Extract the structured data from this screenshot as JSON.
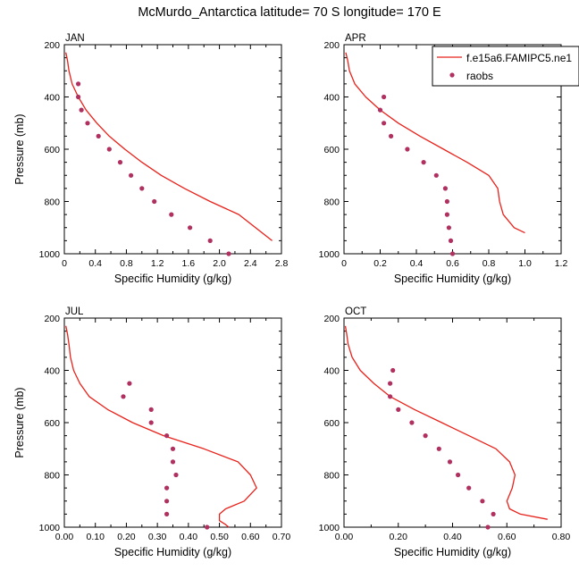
{
  "title": "McMurdo_Antarctica  latitude= 70 S longitude= 170 E",
  "colors": {
    "model_line": "#e8211a",
    "raobs_marker": "#b03060"
  },
  "legend": {
    "model": "f.e15a6.FAMIPC5.ne1",
    "obs": "raobs"
  },
  "chart_data": [
    {
      "type": "line",
      "panel_title": "JAN",
      "xlabel": "Specific Humidity (g/kg)",
      "ylabel": "Pressure (mb)",
      "xlim": [
        0,
        2.8
      ],
      "ylim": [
        200,
        1000
      ],
      "xticks": [
        "0",
        "0.4",
        "0.8",
        "1.2",
        "1.6",
        "2.0",
        "2.4",
        "2.8"
      ],
      "yticks": [
        "200",
        "400",
        "600",
        "800",
        "1000"
      ],
      "y_inverted": true,
      "series": [
        {
          "name": "f.e15a6.FAMIPC5.ne1",
          "style": "line",
          "x": [
            0.02,
            0.04,
            0.06,
            0.1,
            0.18,
            0.28,
            0.42,
            0.58,
            0.78,
            1.0,
            1.25,
            1.55,
            1.88,
            2.25,
            2.68
          ],
          "y": [
            230,
            260,
            300,
            350,
            400,
            450,
            500,
            550,
            600,
            650,
            700,
            750,
            800,
            850,
            950
          ]
        },
        {
          "name": "raobs",
          "style": "marker",
          "x": [
            0.18,
            0.18,
            0.22,
            0.3,
            0.44,
            0.58,
            0.72,
            0.86,
            1.0,
            1.16,
            1.38,
            1.62,
            1.88,
            2.12
          ],
          "y": [
            350,
            400,
            450,
            500,
            550,
            600,
            650,
            700,
            750,
            800,
            850,
            900,
            950,
            1000
          ]
        }
      ]
    },
    {
      "type": "line",
      "panel_title": "APR",
      "xlabel": "Specific Humidity (g/kg)",
      "ylabel": "",
      "xlim": [
        0,
        1.2
      ],
      "ylim": [
        200,
        1000
      ],
      "xticks": [
        "0",
        "0.2",
        "0.4",
        "0.6",
        "0.8",
        "1.0",
        "1.2"
      ],
      "yticks": [
        "200",
        "400",
        "600",
        "800",
        "1000"
      ],
      "y_inverted": true,
      "series": [
        {
          "name": "f.e15a6.FAMIPC5.ne1",
          "style": "line",
          "x": [
            0.01,
            0.02,
            0.03,
            0.06,
            0.12,
            0.2,
            0.3,
            0.42,
            0.55,
            0.68,
            0.8,
            0.85,
            0.86,
            0.88,
            0.94,
            1.0
          ],
          "y": [
            230,
            260,
            300,
            350,
            400,
            450,
            500,
            550,
            600,
            650,
            700,
            750,
            800,
            850,
            900,
            920
          ]
        },
        {
          "name": "raobs",
          "style": "marker",
          "x": [
            0.22,
            0.2,
            0.22,
            0.26,
            0.35,
            0.44,
            0.51,
            0.56,
            0.57,
            0.57,
            0.58,
            0.59,
            0.6
          ],
          "y": [
            400,
            450,
            500,
            550,
            600,
            650,
            700,
            750,
            800,
            850,
            900,
            950,
            1000
          ]
        }
      ]
    },
    {
      "type": "line",
      "panel_title": "JUL",
      "xlabel": "Specific Humidity (g/kg)",
      "ylabel": "Pressure (mb)",
      "xlim": [
        0,
        0.7
      ],
      "ylim": [
        200,
        1000
      ],
      "xticks": [
        "0.00",
        "0.10",
        "0.20",
        "0.30",
        "0.40",
        "0.50",
        "0.60",
        "0.70"
      ],
      "yticks": [
        "200",
        "400",
        "600",
        "800",
        "1000"
      ],
      "y_inverted": true,
      "series": [
        {
          "name": "f.e15a6.FAMIPC5.ne1",
          "style": "line",
          "x": [
            0.005,
            0.01,
            0.015,
            0.02,
            0.03,
            0.05,
            0.08,
            0.14,
            0.22,
            0.32,
            0.45,
            0.56,
            0.6,
            0.62,
            0.58,
            0.52,
            0.5,
            0.5,
            0.52,
            0.53
          ],
          "y": [
            230,
            260,
            300,
            350,
            400,
            450,
            500,
            550,
            600,
            650,
            700,
            750,
            800,
            850,
            900,
            930,
            950,
            975,
            990,
            1000
          ]
        },
        {
          "name": "raobs",
          "style": "marker",
          "x": [
            0.21,
            0.19,
            0.28,
            0.28,
            0.33,
            0.35,
            0.35,
            0.36,
            0.33,
            0.33,
            0.33,
            0.46
          ],
          "y": [
            450,
            500,
            550,
            600,
            650,
            700,
            750,
            800,
            850,
            900,
            950,
            1000
          ]
        }
      ]
    },
    {
      "type": "line",
      "panel_title": "OCT",
      "xlabel": "Specific Humidity (g/kg)",
      "ylabel": "",
      "xlim": [
        0,
        0.8
      ],
      "ylim": [
        200,
        1000
      ],
      "xticks": [
        "0.00",
        "0.20",
        "0.40",
        "0.60",
        "0.80"
      ],
      "yticks": [
        "200",
        "400",
        "600",
        "800",
        "1000"
      ],
      "y_inverted": true,
      "series": [
        {
          "name": "f.e15a6.FAMIPC5.ne1",
          "style": "line",
          "x": [
            0.005,
            0.01,
            0.015,
            0.03,
            0.06,
            0.11,
            0.17,
            0.26,
            0.36,
            0.46,
            0.56,
            0.61,
            0.63,
            0.62,
            0.6,
            0.61,
            0.65,
            0.75
          ],
          "y": [
            230,
            260,
            300,
            350,
            400,
            450,
            500,
            550,
            600,
            650,
            700,
            750,
            800,
            850,
            900,
            930,
            950,
            970
          ]
        },
        {
          "name": "raobs",
          "style": "marker",
          "x": [
            0.18,
            0.17,
            0.17,
            0.2,
            0.25,
            0.3,
            0.35,
            0.39,
            0.42,
            0.46,
            0.51,
            0.55,
            0.53
          ],
          "y": [
            400,
            450,
            500,
            550,
            600,
            650,
            700,
            750,
            800,
            850,
            900,
            950,
            1000
          ]
        }
      ]
    }
  ]
}
